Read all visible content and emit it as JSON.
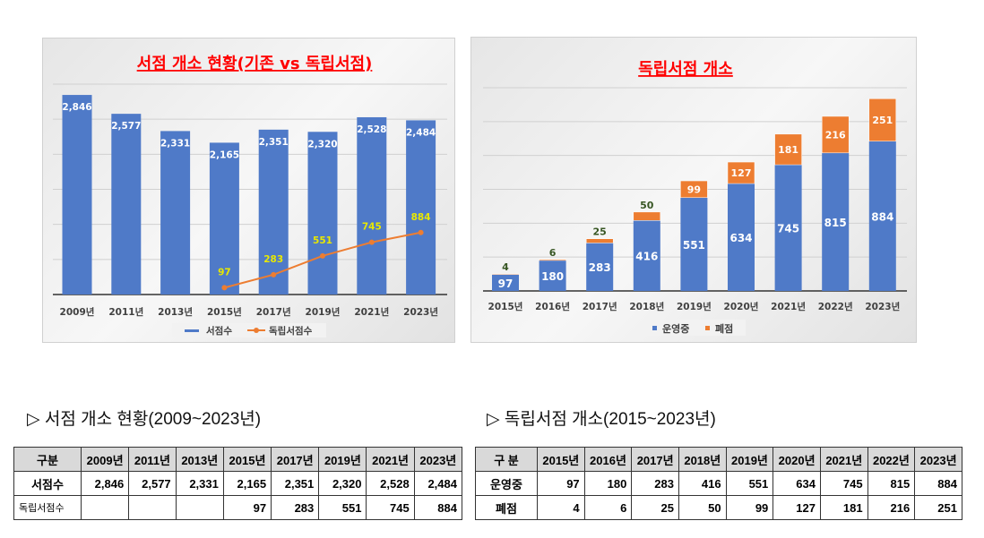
{
  "chart_data": [
    {
      "type": "bar+line",
      "title": "서점 개소 현황(기존 vs 독립서점)",
      "categories": [
        "2009년",
        "2011년",
        "2013년",
        "2015년",
        "2017년",
        "2019년",
        "2021년",
        "2023년"
      ],
      "ylim": [
        0,
        3000
      ],
      "grid": true,
      "legend": "bottom",
      "series": [
        {
          "name": "서점수",
          "type": "bar",
          "color": "#4f7ac8",
          "values": [
            2846,
            2577,
            2331,
            2165,
            2351,
            2320,
            2528,
            2484
          ]
        },
        {
          "name": "독립서점수",
          "type": "line",
          "color": "#ed7d31",
          "values": [
            null,
            null,
            null,
            97,
            283,
            551,
            745,
            884
          ]
        }
      ]
    },
    {
      "type": "stacked-bar",
      "title": "독립서점 개소",
      "categories": [
        "2015년",
        "2016년",
        "2017년",
        "2018년",
        "2019년",
        "2020년",
        "2021년",
        "2022년",
        "2023년"
      ],
      "ylim": [
        0,
        1200
      ],
      "grid": true,
      "legend": "bottom",
      "series": [
        {
          "name": "운영중",
          "color": "#4f7ac8",
          "values": [
            97,
            180,
            283,
            416,
            551,
            634,
            745,
            815,
            884
          ]
        },
        {
          "name": "폐점",
          "color": "#ed7d31",
          "values": [
            4,
            6,
            25,
            50,
            99,
            127,
            181,
            216,
            251
          ]
        }
      ]
    }
  ],
  "headings": {
    "t1": "▷ 서점 개소 현황(2009~2023년)",
    "t2": "▷ 독립서점 개소(2015~2023년)"
  },
  "table1": {
    "header": [
      "구분",
      "2009년",
      "2011년",
      "2013년",
      "2015년",
      "2017년",
      "2019년",
      "2021년",
      "2023년"
    ],
    "rows": [
      [
        "서점수",
        "2,846",
        "2,577",
        "2,331",
        "2,165",
        "2,351",
        "2,320",
        "2,528",
        "2,484"
      ],
      [
        "독립서점수",
        "",
        "",
        "",
        "97",
        "283",
        "551",
        "745",
        "884"
      ]
    ]
  },
  "table2": {
    "header": [
      "구  분",
      "2015년",
      "2016년",
      "2017년",
      "2018년",
      "2019년",
      "2020년",
      "2021년",
      "2022년",
      "2023년"
    ],
    "rows": [
      [
        "운영중",
        "97",
        "180",
        "283",
        "416",
        "551",
        "634",
        "745",
        "815",
        "884"
      ],
      [
        "폐점",
        "4",
        "6",
        "25",
        "50",
        "99",
        "127",
        "181",
        "216",
        "251"
      ]
    ]
  }
}
